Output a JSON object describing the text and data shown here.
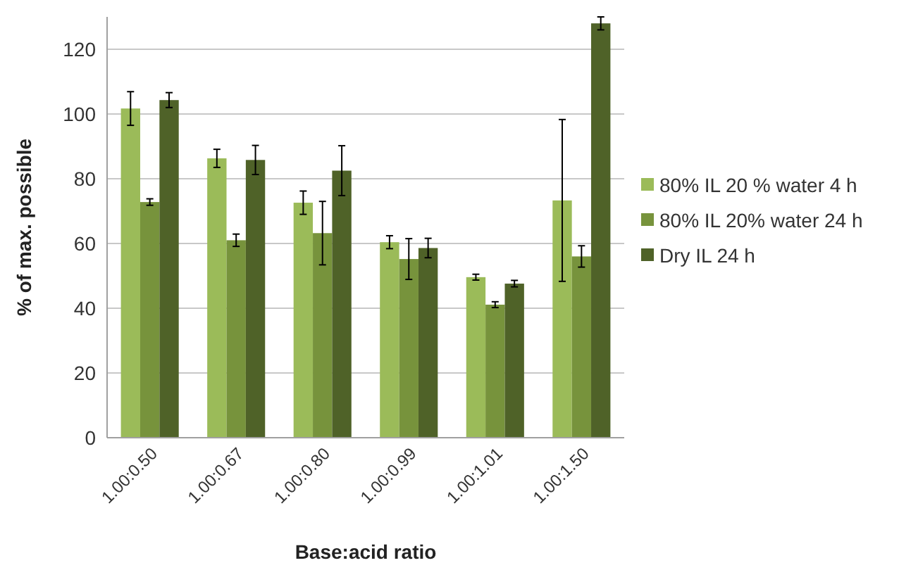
{
  "chart_data": {
    "type": "bar",
    "xlabel": "Base:acid ratio",
    "ylabel": "% of max. possible",
    "categories": [
      "1.00:0.50",
      "1.00:0.67",
      "1.00:0.80",
      "1.00:0.99",
      "1.00:1.01",
      "1.00:1.50"
    ],
    "series": [
      {
        "name": "80% IL 20 % water 4 h",
        "color": "#9bbb59",
        "values": [
          101.7,
          86.3,
          72.6,
          60.4,
          49.6,
          73.3
        ],
        "errors": [
          5.2,
          2.8,
          3.6,
          2,
          0.9,
          25
        ]
      },
      {
        "name": "80% IL 20% water 24 h",
        "color": "#77933c",
        "values": [
          72.8,
          61,
          63.2,
          55.2,
          41.1,
          56
        ],
        "errors": [
          1,
          1.9,
          9.8,
          6.3,
          0.9,
          3.3
        ]
      },
      {
        "name": "Dry IL 24 h",
        "color": "#4f6228",
        "values": [
          104.3,
          85.8,
          82.5,
          58.6,
          47.6,
          128
        ],
        "errors": [
          2.3,
          4.5,
          7.7,
          3,
          1,
          2
        ]
      }
    ],
    "ylim": [
      0,
      130
    ],
    "yticks": [
      0,
      20,
      40,
      60,
      80,
      100,
      120
    ],
    "grid": "y",
    "legend": "right"
  }
}
